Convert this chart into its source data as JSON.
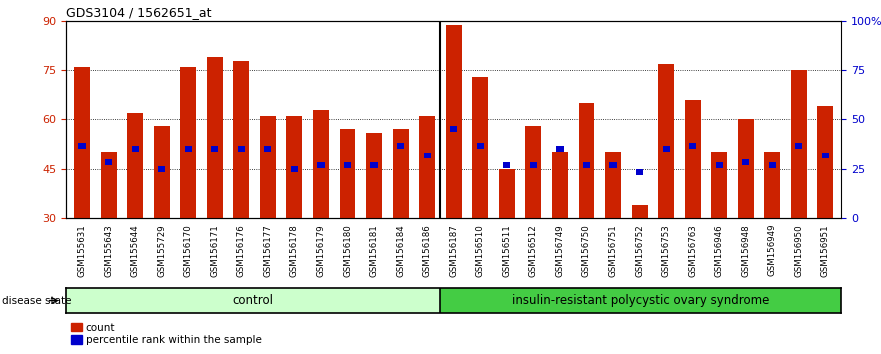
{
  "title": "GDS3104 / 1562651_at",
  "samples": [
    "GSM155631",
    "GSM155643",
    "GSM155644",
    "GSM155729",
    "GSM156170",
    "GSM156171",
    "GSM156176",
    "GSM156177",
    "GSM156178",
    "GSM156179",
    "GSM156180",
    "GSM156181",
    "GSM156184",
    "GSM156186",
    "GSM156187",
    "GSM156510",
    "GSM156511",
    "GSM156512",
    "GSM156749",
    "GSM156750",
    "GSM156751",
    "GSM156752",
    "GSM156753",
    "GSM156763",
    "GSM156946",
    "GSM156948",
    "GSM156949",
    "GSM156950",
    "GSM156951"
  ],
  "bar_values": [
    76,
    50,
    62,
    58,
    76,
    79,
    78,
    61,
    61,
    63,
    57,
    56,
    57,
    61,
    89,
    73,
    45,
    58,
    50,
    65,
    50,
    34,
    77,
    66,
    50,
    60,
    50,
    75,
    64
  ],
  "percentile_values": [
    52,
    47,
    51,
    45,
    51,
    51,
    51,
    51,
    45,
    46,
    46,
    46,
    52,
    49,
    57,
    52,
    46,
    46,
    51,
    46,
    46,
    44,
    51,
    52,
    46,
    47,
    46,
    52,
    49
  ],
  "group_labels": [
    "control",
    "insulin-resistant polycystic ovary syndrome"
  ],
  "group_split": 14,
  "bar_color": "#cc2200",
  "percentile_color": "#0000cc",
  "control_bg": "#ccffcc",
  "disease_bg": "#44cc44",
  "ymin": 30,
  "ymax": 90,
  "yticks": [
    30,
    45,
    60,
    75,
    90
  ],
  "right_yticklabels": [
    "0",
    "25",
    "50",
    "75",
    "100%"
  ],
  "legend_count_label": "count",
  "legend_pct_label": "percentile rank within the sample",
  "disease_state_label": "disease state"
}
